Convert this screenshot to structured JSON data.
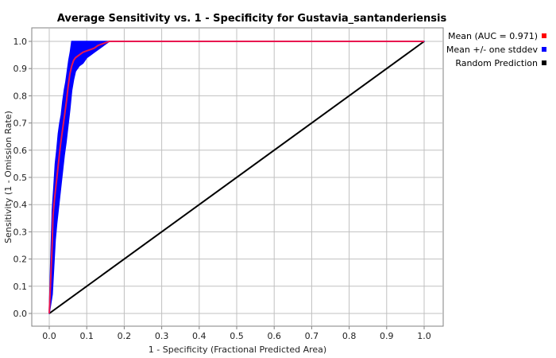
{
  "chart_data": {
    "type": "line",
    "title": "Average Sensitivity vs. 1 - Specificity for Gustavia_santanderiensis",
    "xlabel": "1 - Specificity (Fractional Predicted Area)",
    "ylabel": "Sensitivity (1 - Omission Rate)",
    "xlim": [
      0,
      1
    ],
    "ylim": [
      0,
      1
    ],
    "x_ticks": [
      "0.0",
      "0.1",
      "0.2",
      "0.3",
      "0.4",
      "0.5",
      "0.6",
      "0.7",
      "0.8",
      "0.9",
      "1.0"
    ],
    "y_ticks": [
      "0.0",
      "0.1",
      "0.2",
      "0.3",
      "0.4",
      "0.5",
      "0.6",
      "0.7",
      "0.8",
      "0.9",
      "1.0"
    ],
    "grid": true,
    "legend_position": "right",
    "legend": [
      {
        "label": "Mean (AUC = 0.971)",
        "color": "#ff0000"
      },
      {
        "label": "Mean +/- one stddev",
        "color": "#0000ff"
      },
      {
        "label": "Random Prediction",
        "color": "#000000"
      }
    ],
    "series": [
      {
        "name": "Mean (AUC = 0.971)",
        "color": "#e8174f",
        "x": [
          0.0,
          0.004,
          0.008,
          0.01,
          0.014,
          0.018,
          0.022,
          0.026,
          0.03,
          0.034,
          0.038,
          0.042,
          0.046,
          0.05,
          0.055,
          0.06,
          0.065,
          0.07,
          0.08,
          0.09,
          0.1,
          0.11,
          0.12,
          0.13,
          0.14,
          0.15,
          0.16,
          0.17,
          1.0
        ],
        "y": [
          0.0,
          0.13,
          0.26,
          0.36,
          0.42,
          0.47,
          0.52,
          0.57,
          0.62,
          0.66,
          0.7,
          0.74,
          0.78,
          0.83,
          0.88,
          0.91,
          0.93,
          0.94,
          0.95,
          0.96,
          0.965,
          0.97,
          0.975,
          0.985,
          0.99,
          0.995,
          1.0,
          1.0,
          1.0
        ]
      },
      {
        "name": "Mean +/- one stddev",
        "color": "#0000ff",
        "upper": {
          "x": [
            0.0,
            0.004,
            0.008,
            0.012,
            0.016,
            0.02,
            0.024,
            0.028,
            0.032,
            0.036,
            0.04,
            0.044,
            0.048,
            0.052,
            0.056,
            0.06,
            0.065,
            0.07,
            1.0
          ],
          "y": [
            0.0,
            0.2,
            0.38,
            0.46,
            0.55,
            0.6,
            0.66,
            0.7,
            0.73,
            0.78,
            0.82,
            0.85,
            0.89,
            0.93,
            0.96,
            1.0,
            1.0,
            1.0,
            1.0
          ]
        },
        "lower": {
          "x": [
            0.0,
            0.008,
            0.012,
            0.016,
            0.02,
            0.024,
            0.028,
            0.032,
            0.036,
            0.04,
            0.045,
            0.05,
            0.055,
            0.06,
            0.065,
            0.07,
            0.08,
            0.09,
            0.1,
            0.11,
            0.12,
            0.13,
            0.14,
            0.15,
            0.16,
            0.17,
            1.0
          ],
          "y": [
            0.0,
            0.07,
            0.17,
            0.27,
            0.33,
            0.38,
            0.43,
            0.48,
            0.53,
            0.58,
            0.63,
            0.69,
            0.75,
            0.82,
            0.86,
            0.89,
            0.91,
            0.92,
            0.94,
            0.95,
            0.96,
            0.97,
            0.98,
            0.99,
            1.0,
            1.0,
            1.0
          ]
        }
      },
      {
        "name": "Random Prediction",
        "color": "#000000",
        "x": [
          0.0,
          1.0
        ],
        "y": [
          0.0,
          1.0
        ]
      }
    ]
  }
}
